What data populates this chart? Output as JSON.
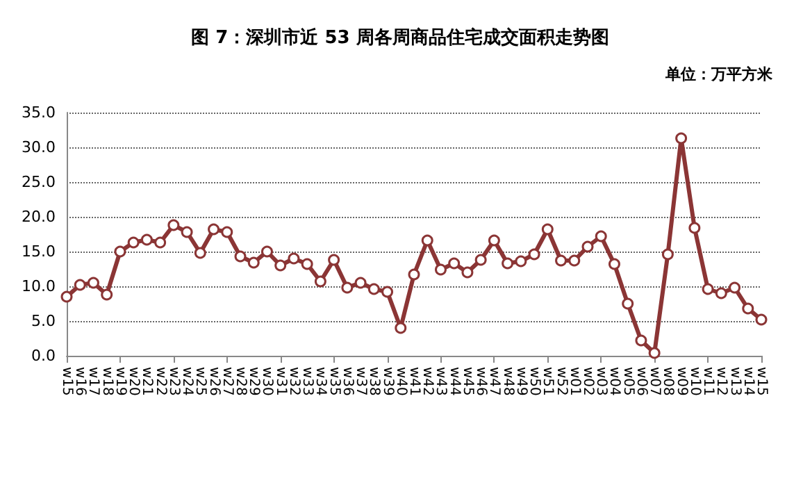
{
  "chart_data": {
    "type": "line",
    "title": "图 7：深圳市近 53 周各周商品住宅成交面积走势图",
    "ylabel": "单位：万平方米",
    "categories": [
      "w15",
      "w16",
      "w17",
      "w18",
      "w19",
      "w20",
      "w21",
      "w22",
      "w23",
      "w24",
      "w25",
      "w26",
      "w27",
      "w28",
      "w29",
      "w30",
      "w31",
      "w32",
      "w33",
      "w34",
      "w35",
      "w36",
      "w37",
      "w38",
      "w39",
      "w40",
      "w41",
      "w42",
      "w43",
      "w44",
      "w45",
      "w46",
      "w47",
      "w48",
      "w49",
      "w50",
      "w51",
      "w52",
      "w01",
      "w02",
      "w03",
      "w04",
      "w05",
      "w06",
      "w07",
      "w08",
      "w09",
      "w10",
      "w11",
      "w12",
      "w13",
      "w14",
      "w15"
    ],
    "series": [
      {
        "color": "#8b3535",
        "values": [
          8.5,
          10.2,
          10.5,
          8.8,
          15.0,
          16.3,
          16.7,
          16.3,
          18.8,
          17.8,
          14.8,
          18.2,
          17.8,
          14.3,
          13.4,
          15.0,
          13.0,
          14.0,
          13.2,
          10.7,
          13.8,
          9.8,
          10.5,
          9.6,
          9.2,
          4.0,
          11.7,
          16.6,
          12.4,
          13.3,
          12.0,
          13.8,
          16.6,
          13.3,
          13.6,
          14.6,
          18.2,
          13.7,
          13.7,
          15.7,
          17.2,
          13.2,
          7.5,
          2.2,
          0.4,
          14.6,
          31.3,
          18.4,
          9.6,
          9.0,
          9.8,
          6.8,
          5.2
        ]
      }
    ],
    "ylim": [
      0,
      35
    ],
    "yticks": [
      {
        "value": 0,
        "label": "0.0"
      },
      {
        "value": 5,
        "label": "5.0"
      },
      {
        "value": 10,
        "label": "10.0"
      },
      {
        "value": 15,
        "label": "15.0"
      },
      {
        "value": 20,
        "label": "20.0"
      },
      {
        "value": 25,
        "label": "25.0"
      },
      {
        "value": 30,
        "label": "30.0"
      },
      {
        "value": 35,
        "label": "35.0"
      }
    ],
    "grid": "y",
    "marker": "circle",
    "line_style": "solid"
  }
}
